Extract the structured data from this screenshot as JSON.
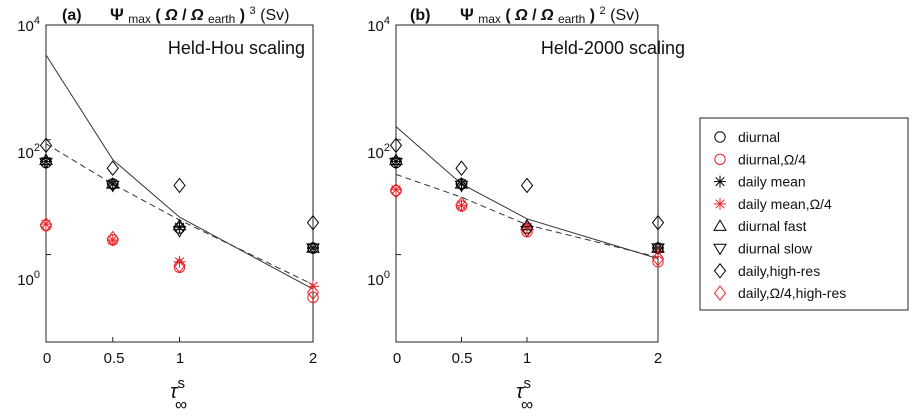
{
  "chart_data": [
    {
      "type": "scatter",
      "panel_label": "(a)",
      "title": "Ψmax(Ω/Ωearth)3 (Sv)",
      "title_parts": {
        "psi": "Ψ",
        "sub_max": "max",
        "open": "(",
        "omega": "Ω",
        "slash": "/",
        "omega2": "Ω",
        "sub_earth": "earth",
        "close": ")",
        "sup": "3",
        "units": " (Sv)"
      },
      "subtitle": "Held-Hou scaling",
      "xlabel": "τ∞s",
      "xlabel_parts": {
        "tau": "τ",
        "sup": "s",
        "sub": "∞"
      },
      "x_ticks": [
        0,
        0.5,
        1,
        2
      ],
      "x_tick_labels": [
        "0",
        "0.5",
        "1",
        "2"
      ],
      "xlim": [
        0,
        2
      ],
      "y_scale": "log",
      "ylim": [
        0.03,
        10000
      ],
      "y_ticks": [
        {
          "value": 10000,
          "base": "10",
          "exp": "4"
        },
        {
          "value": 100,
          "base": "10",
          "exp": "2"
        },
        {
          "value": 1,
          "base": "10",
          "exp": "0"
        }
      ],
      "grid": false,
      "series": [
        {
          "name": "diurnal",
          "marker": "circle",
          "color": "#000000",
          "points": [
            [
              0,
              40
            ],
            [
              0.5,
              17
            ],
            [
              1,
              2.9
            ],
            [
              2,
              1.3
            ]
          ]
        },
        {
          "name": "diurnal,Ω/4",
          "marker": "circle",
          "color": "#e8262a",
          "points": [
            [
              0,
              3.2
            ],
            [
              0.5,
              1.8
            ],
            [
              1,
              0.6
            ],
            [
              2,
              0.18
            ]
          ]
        },
        {
          "name": "daily mean",
          "marker": "asterisk",
          "color": "#000000",
          "points": [
            [
              0,
              42
            ],
            [
              0.5,
              17
            ],
            [
              1,
              3.0
            ],
            [
              2,
              1.3
            ]
          ]
        },
        {
          "name": "daily mean,Ω/4",
          "marker": "asterisk",
          "color": "#e8262a",
          "points": [
            [
              0,
              3.4
            ],
            [
              0.5,
              1.8
            ],
            [
              1,
              0.75
            ],
            [
              2,
              0.28
            ]
          ]
        },
        {
          "name": "diurnal fast",
          "marker": "triangle-up",
          "color": "#000000",
          "points": [
            [
              0,
              44
            ],
            [
              0.5,
              17
            ],
            [
              1,
              3.2
            ],
            [
              2,
              1.3
            ]
          ]
        },
        {
          "name": "diurnal slow",
          "marker": "triangle-down",
          "color": "#000000",
          "points": [
            [
              0,
              40
            ],
            [
              0.5,
              16
            ],
            [
              1,
              2.6
            ],
            [
              2,
              1.3
            ]
          ]
        },
        {
          "name": "daily,high-res",
          "marker": "diamond",
          "color": "#000000",
          "points": [
            [
              0,
              80
            ],
            [
              0.5,
              32
            ],
            [
              1,
              16
            ],
            [
              2,
              3.6
            ]
          ]
        },
        {
          "name": "daily,Ω/4,high-res",
          "marker": "diamond",
          "color": "#e8262a",
          "points": [
            [
              0,
              3.3
            ],
            [
              0.5,
              1.9
            ],
            [
              1,
              0.65
            ],
            [
              2,
              0.22
            ]
          ]
        }
      ],
      "lines": [
        {
          "style": "solid",
          "points": [
            [
              0,
              3000
            ],
            [
              0.5,
              45
            ],
            [
              1,
              4.5
            ],
            [
              2,
              0.25
            ]
          ]
        },
        {
          "style": "dashed",
          "points": [
            [
              0,
              85
            ],
            [
              0.5,
              17
            ],
            [
              1,
              4.0
            ],
            [
              2,
              0.3
            ]
          ]
        }
      ]
    },
    {
      "type": "scatter",
      "panel_label": "(b)",
      "title": "Ψmax(Ω/Ωearth)2 (Sv)",
      "title_parts": {
        "psi": "Ψ",
        "sub_max": "max",
        "open": "(",
        "omega": "Ω",
        "slash": "/",
        "omega2": "Ω",
        "sub_earth": "earth",
        "close": ")",
        "sup": "2",
        "units": " (Sv)"
      },
      "subtitle": "Held-2000 scaling",
      "xlabel": "τ∞s",
      "xlabel_parts": {
        "tau": "τ",
        "sup": "s",
        "sub": "∞"
      },
      "x_ticks": [
        0,
        0.5,
        1,
        2
      ],
      "x_tick_labels": [
        "0",
        "0.5",
        "1",
        "2"
      ],
      "xlim": [
        0,
        2
      ],
      "y_scale": "log",
      "ylim": [
        0.03,
        10000
      ],
      "y_ticks": [
        {
          "value": 10000,
          "base": "10",
          "exp": "4"
        },
        {
          "value": 100,
          "base": "10",
          "exp": "2"
        },
        {
          "value": 1,
          "base": "10",
          "exp": "0"
        }
      ],
      "grid": false,
      "series": [
        {
          "name": "diurnal",
          "marker": "circle",
          "color": "#000000",
          "points": [
            [
              0,
              40
            ],
            [
              0.5,
              17
            ],
            [
              1,
              2.9
            ],
            [
              2,
              1.3
            ]
          ]
        },
        {
          "name": "diurnal,Ω/4",
          "marker": "circle",
          "color": "#e8262a",
          "points": [
            [
              0,
              13
            ],
            [
              0.5,
              7
            ],
            [
              1,
              2.5
            ],
            [
              2,
              0.75
            ]
          ]
        },
        {
          "name": "daily mean",
          "marker": "asterisk",
          "color": "#000000",
          "points": [
            [
              0,
              42
            ],
            [
              0.5,
              17
            ],
            [
              1,
              3.0
            ],
            [
              2,
              1.3
            ]
          ]
        },
        {
          "name": "daily mean,Ω/4",
          "marker": "asterisk",
          "color": "#e8262a",
          "points": [
            [
              0,
              13.5
            ],
            [
              0.5,
              7.2
            ],
            [
              1,
              3.0
            ],
            [
              2,
              1.1
            ]
          ]
        },
        {
          "name": "diurnal fast",
          "marker": "triangle-up",
          "color": "#000000",
          "points": [
            [
              0,
              44
            ],
            [
              0.5,
              17
            ],
            [
              1,
              3.2
            ],
            [
              2,
              1.3
            ]
          ]
        },
        {
          "name": "diurnal slow",
          "marker": "triangle-down",
          "color": "#000000",
          "points": [
            [
              0,
              40
            ],
            [
              0.5,
              16
            ],
            [
              1,
              2.6
            ],
            [
              2,
              1.3
            ]
          ]
        },
        {
          "name": "daily,high-res",
          "marker": "diamond",
          "color": "#000000",
          "points": [
            [
              0,
              80
            ],
            [
              0.5,
              32
            ],
            [
              1,
              16
            ],
            [
              2,
              3.6
            ]
          ]
        },
        {
          "name": "daily,Ω/4,high-res",
          "marker": "diamond",
          "color": "#e8262a",
          "points": [
            [
              0,
              13
            ],
            [
              0.5,
              7.5
            ],
            [
              1,
              2.7
            ],
            [
              2,
              0.85
            ]
          ]
        }
      ],
      "lines": [
        {
          "style": "solid",
          "points": [
            [
              0,
              170
            ],
            [
              0.5,
              17
            ],
            [
              1,
              4.2
            ],
            [
              2,
              0.85
            ]
          ]
        },
        {
          "style": "dashed",
          "points": [
            [
              0,
              25
            ],
            [
              0.5,
              10
            ],
            [
              1,
              3.3
            ],
            [
              2,
              0.9
            ]
          ]
        }
      ]
    }
  ],
  "legend": {
    "placement": "right",
    "items": [
      {
        "label": "diurnal",
        "marker": "circle",
        "color": "#000000"
      },
      {
        "label": "diurnal,Ω/4",
        "marker": "circle",
        "color": "#e8262a"
      },
      {
        "label": "daily mean",
        "marker": "asterisk",
        "color": "#000000"
      },
      {
        "label": "daily mean,Ω/4",
        "marker": "asterisk",
        "color": "#e8262a"
      },
      {
        "label": "diurnal fast",
        "marker": "triangle-up",
        "color": "#000000"
      },
      {
        "label": "diurnal slow",
        "marker": "triangle-down",
        "color": "#000000"
      },
      {
        "label": "daily,high-res",
        "marker": "diamond",
        "color": "#000000"
      },
      {
        "label": "daily,Ω/4,high-res",
        "marker": "diamond",
        "color": "#e8262a"
      }
    ]
  }
}
